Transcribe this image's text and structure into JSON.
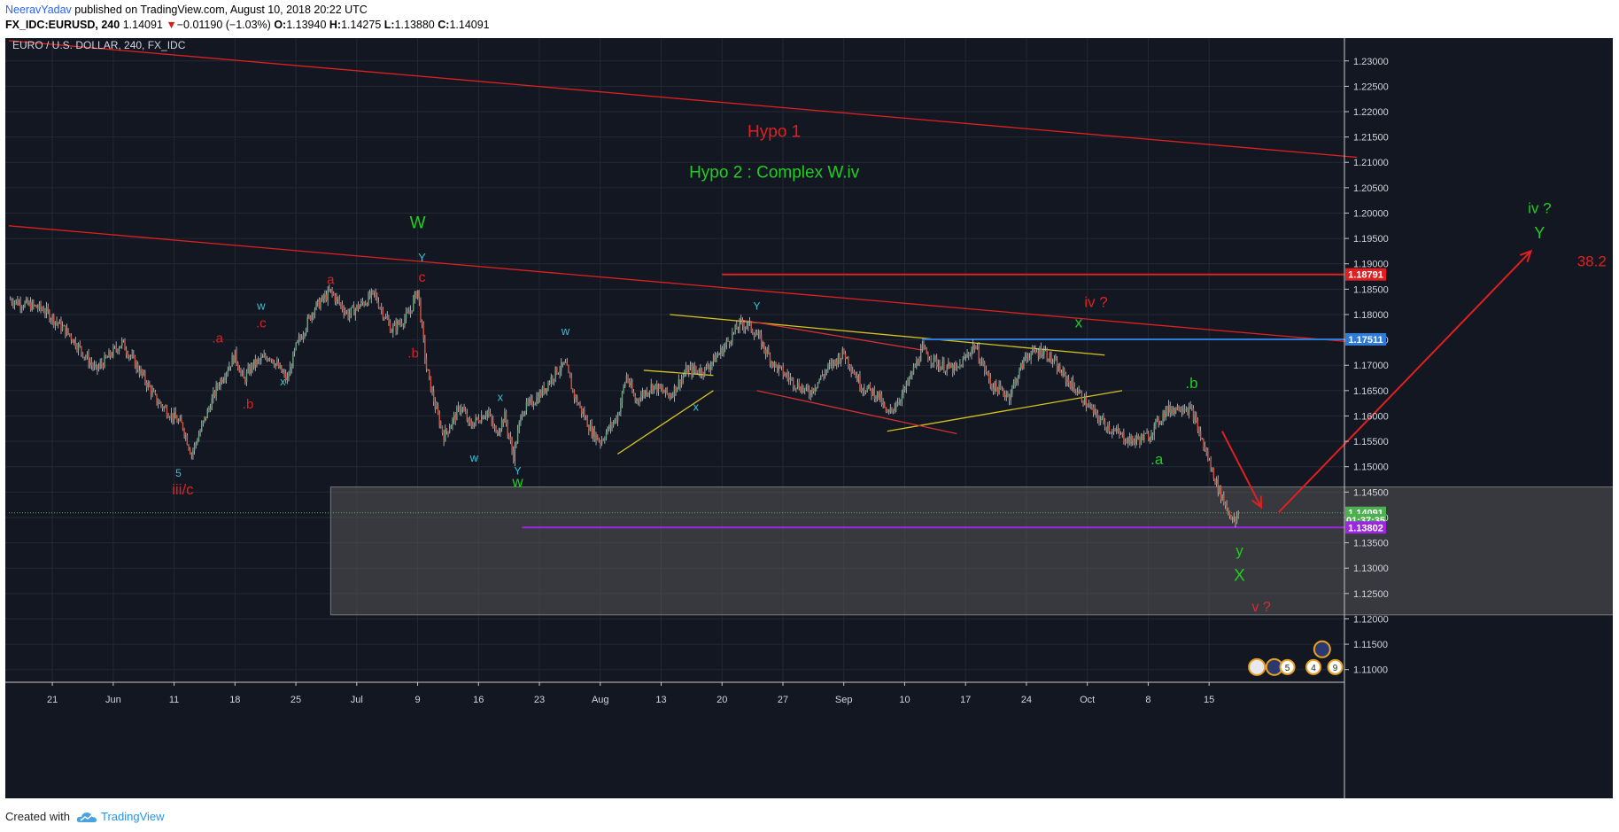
{
  "header": {
    "author": "NeeravYadav",
    "published_text": "published on TradingView.com, August 10, 2018 20:22 UTC",
    "symbol": "FX_IDC:EURUSD, 240",
    "last_price": "1.14091",
    "down_arrow": "▼",
    "change": "−0.01190 (−1.03%)",
    "o_label": "O:",
    "o_value": "1.13940",
    "h_label": "H:",
    "h_value": "1.14275",
    "l_label": "L:",
    "l_value": "1.13880",
    "c_label": "C:",
    "c_value": "1.14091"
  },
  "footer": {
    "created_with": "Created with",
    "brand": "TradingView"
  },
  "chart_data": {
    "type": "candlestick",
    "title": "EURO / U.S. DOLLAR, 240, FX_IDC",
    "background": "#131722",
    "grid": true,
    "x_axis_labels": [
      "21",
      "Jun",
      "11",
      "18",
      "25",
      "Jul",
      "9",
      "16",
      "23",
      "Aug",
      "13",
      "20",
      "27",
      "Sep",
      "10",
      "17",
      "24",
      "Oct",
      "8",
      "15"
    ],
    "y_axis": {
      "ylim": [
        1.1075,
        1.2345
      ],
      "ticks": [
        "1.11000",
        "1.11500",
        "1.12000",
        "1.12500",
        "1.13000",
        "1.13500",
        "1.14000",
        "1.14500",
        "1.15000",
        "1.15500",
        "1.16000",
        "1.16500",
        "1.17000",
        "1.17500",
        "1.18000",
        "1.18500",
        "1.19000",
        "1.19500",
        "1.20000",
        "1.20500",
        "1.21000",
        "1.21500",
        "1.22000",
        "1.22500",
        "1.23000"
      ]
    },
    "price_badges": [
      {
        "text": "1.18791",
        "value": 1.18791,
        "color": "#e02020"
      },
      {
        "text": "1.17511",
        "value": 1.17511,
        "color": "#2f7bd8"
      },
      {
        "text": "1.14091",
        "value": 1.14091,
        "color": "#4caf50"
      },
      {
        "text": "01:37:35",
        "value": 1.13947,
        "color": "#4caf50"
      },
      {
        "text": "1.13802",
        "value": 1.13802,
        "color": "#9c27e0"
      }
    ],
    "price_series": [
      {
        "x": 0,
        "y": 1.183
      },
      {
        "x": 4,
        "y": 1.181
      },
      {
        "x": 7,
        "y": 1.176
      },
      {
        "x": 10,
        "y": 1.169
      },
      {
        "x": 13,
        "y": 1.1745
      },
      {
        "x": 15,
        "y": 1.169
      },
      {
        "x": 17,
        "y": 1.163
      },
      {
        "x": 20,
        "y": 1.158
      },
      {
        "x": 21,
        "y": 1.1525
      },
      {
        "x": 22,
        "y": 1.157
      },
      {
        "x": 24,
        "y": 1.166
      },
      {
        "x": 26,
        "y": 1.172
      },
      {
        "x": 27,
        "y": 1.167
      },
      {
        "x": 28,
        "y": 1.17
      },
      {
        "x": 30,
        "y": 1.172
      },
      {
        "x": 32,
        "y": 1.167
      },
      {
        "x": 33,
        "y": 1.1735
      },
      {
        "x": 35,
        "y": 1.181
      },
      {
        "x": 37,
        "y": 1.1845
      },
      {
        "x": 39,
        "y": 1.18
      },
      {
        "x": 42,
        "y": 1.184
      },
      {
        "x": 44,
        "y": 1.177
      },
      {
        "x": 46,
        "y": 1.18
      },
      {
        "x": 47,
        "y": 1.185
      },
      {
        "x": 48,
        "y": 1.1695
      },
      {
        "x": 49,
        "y": 1.162
      },
      {
        "x": 50,
        "y": 1.156
      },
      {
        "x": 52,
        "y": 1.162
      },
      {
        "x": 53,
        "y": 1.158
      },
      {
        "x": 55,
        "y": 1.161
      },
      {
        "x": 56,
        "y": 1.1565
      },
      {
        "x": 57,
        "y": 1.16
      },
      {
        "x": 58,
        "y": 1.152
      },
      {
        "x": 59,
        "y": 1.161
      },
      {
        "x": 61,
        "y": 1.164
      },
      {
        "x": 63,
        "y": 1.169
      },
      {
        "x": 64,
        "y": 1.17
      },
      {
        "x": 65,
        "y": 1.164
      },
      {
        "x": 67,
        "y": 1.157
      },
      {
        "x": 68,
        "y": 1.155
      },
      {
        "x": 70,
        "y": 1.16
      },
      {
        "x": 71,
        "y": 1.168
      },
      {
        "x": 72,
        "y": 1.163
      },
      {
        "x": 74,
        "y": 1.166
      },
      {
        "x": 76,
        "y": 1.164
      },
      {
        "x": 78,
        "y": 1.169
      },
      {
        "x": 80,
        "y": 1.169
      },
      {
        "x": 82,
        "y": 1.173
      },
      {
        "x": 84,
        "y": 1.178
      },
      {
        "x": 85,
        "y": 1.178
      },
      {
        "x": 86,
        "y": 1.176
      },
      {
        "x": 88,
        "y": 1.17
      },
      {
        "x": 90,
        "y": 1.167
      },
      {
        "x": 92,
        "y": 1.1645
      },
      {
        "x": 94,
        "y": 1.169
      },
      {
        "x": 96,
        "y": 1.1725
      },
      {
        "x": 98,
        "y": 1.166
      },
      {
        "x": 100,
        "y": 1.164
      },
      {
        "x": 101,
        "y": 1.16
      },
      {
        "x": 103,
        "y": 1.165
      },
      {
        "x": 105,
        "y": 1.173
      },
      {
        "x": 107,
        "y": 1.17
      },
      {
        "x": 109,
        "y": 1.169
      },
      {
        "x": 111,
        "y": 1.174
      },
      {
        "x": 113,
        "y": 1.166
      },
      {
        "x": 115,
        "y": 1.164
      },
      {
        "x": 117,
        "y": 1.172
      },
      {
        "x": 119,
        "y": 1.173
      },
      {
        "x": 121,
        "y": 1.1685
      },
      {
        "x": 123,
        "y": 1.1645
      },
      {
        "x": 125,
        "y": 1.16
      },
      {
        "x": 127,
        "y": 1.157
      },
      {
        "x": 129,
        "y": 1.155
      },
      {
        "x": 131,
        "y": 1.156
      },
      {
        "x": 133,
        "y": 1.161
      },
      {
        "x": 135,
        "y": 1.162
      },
      {
        "x": 136,
        "y": 1.161
      },
      {
        "x": 137,
        "y": 1.156
      },
      {
        "x": 138,
        "y": 1.151
      },
      {
        "x": 139,
        "y": 1.146
      },
      {
        "x": 140,
        "y": 1.142
      },
      {
        "x": 141,
        "y": 1.1388
      },
      {
        "x": 141.5,
        "y": 1.1409
      }
    ],
    "horizontal_lines": [
      {
        "value": 1.18791,
        "from_x": 82,
        "color": "#e02020",
        "label": "38.2"
      },
      {
        "value": 1.17511,
        "from_x": 105,
        "color": "#2f7bd8"
      },
      {
        "value": 1.13802,
        "from_x": 59,
        "color": "#9c27e0"
      },
      {
        "value": 1.14091,
        "from_x": 0,
        "color": "#4caf50",
        "dotted": true
      }
    ],
    "zone": {
      "x0": 37,
      "x1": 245,
      "y0": 1.146,
      "y1": 1.1208,
      "color": "#555555"
    },
    "trendlines": [
      {
        "x0": 0,
        "y0": 1.234,
        "x1": 155,
        "y1": 1.211,
        "color": "#e02020"
      },
      {
        "x0": 0,
        "y0": 1.1975,
        "x1": 155,
        "y1": 1.1745,
        "color": "#e02020"
      },
      {
        "x0": 76,
        "y0": 1.18,
        "x1": 126,
        "y1": 1.172,
        "color": "#d4c320"
      },
      {
        "x0": 101,
        "y0": 1.157,
        "x1": 128,
        "y1": 1.165,
        "color": "#d4c320"
      },
      {
        "x0": 70,
        "y0": 1.1525,
        "x1": 81,
        "y1": 1.165,
        "color": "#d4c320"
      },
      {
        "x0": 73,
        "y0": 1.169,
        "x1": 81,
        "y1": 1.168,
        "color": "#d4c320"
      },
      {
        "x0": 84,
        "y0": 1.179,
        "x1": 105,
        "y1": 1.173,
        "color": "#d43030"
      },
      {
        "x0": 86,
        "y0": 1.165,
        "x1": 109,
        "y1": 1.1565,
        "color": "#d43030"
      }
    ],
    "arrows": [
      {
        "x0": 139.5,
        "y0": 1.157,
        "x1": 144,
        "y1": 1.142,
        "color": "#e02020"
      },
      {
        "x0": 146,
        "y0": 1.141,
        "x1": 175,
        "y1": 1.1925,
        "color": "#e02020"
      }
    ],
    "annotations": [
      {
        "text": "Hypo 1",
        "x": 88,
        "y": 1.215,
        "color": "#e02020",
        "size": 19
      },
      {
        "text": "Hypo 2 : Complex W.iv",
        "x": 88,
        "y": 1.207,
        "color": "#22cc22",
        "size": 19
      },
      {
        "text": "W",
        "x": 47,
        "y": 1.197,
        "color": "#22cc22",
        "size": 19
      },
      {
        "text": "Y",
        "x": 47.5,
        "y": 1.1905,
        "color": "#35c2d8",
        "size": 13
      },
      {
        "text": "c",
        "x": 47.5,
        "y": 1.1865,
        "color": "#e02020",
        "size": 16
      },
      {
        "text": "a",
        "x": 37,
        "y": 1.186,
        "color": "#e02020",
        "size": 15
      },
      {
        "text": "w",
        "x": 29,
        "y": 1.181,
        "color": "#35c2d8",
        "size": 13
      },
      {
        "text": ".c",
        "x": 29,
        "y": 1.1775,
        "color": "#e02020",
        "size": 15
      },
      {
        "text": ".a",
        "x": 24,
        "y": 1.1745,
        "color": "#e02020",
        "size": 15
      },
      {
        "text": ".b",
        "x": 46.5,
        "y": 1.1715,
        "color": "#e02020",
        "size": 15
      },
      {
        "text": "x",
        "x": 31.5,
        "y": 1.166,
        "color": "#35c2d8",
        "size": 13
      },
      {
        "text": ".b",
        "x": 27.5,
        "y": 1.1615,
        "color": "#e02020",
        "size": 15
      },
      {
        "text": "5",
        "x": 19.5,
        "y": 1.148,
        "color": "#35c2d8",
        "size": 12
      },
      {
        "text": "iii/c",
        "x": 20,
        "y": 1.1445,
        "color": "#e02020",
        "size": 17
      },
      {
        "text": "w",
        "x": 64,
        "y": 1.176,
        "color": "#35c2d8",
        "size": 13
      },
      {
        "text": "x",
        "x": 56.5,
        "y": 1.163,
        "color": "#35c2d8",
        "size": 13
      },
      {
        "text": "w",
        "x": 53.5,
        "y": 1.151,
        "color": "#35c2d8",
        "size": 13
      },
      {
        "text": "Y",
        "x": 58.5,
        "y": 1.1485,
        "color": "#35c2d8",
        "size": 12
      },
      {
        "text": "w",
        "x": 58.5,
        "y": 1.146,
        "color": "#22cc22",
        "size": 17
      },
      {
        "text": "Y",
        "x": 86,
        "y": 1.181,
        "color": "#35c2d8",
        "size": 12
      },
      {
        "text": "x",
        "x": 79,
        "y": 1.161,
        "color": "#35c2d8",
        "size": 13
      },
      {
        "text": "iv ?",
        "x": 125,
        "y": 1.1815,
        "color": "#e02020",
        "size": 17
      },
      {
        "text": "x",
        "x": 123,
        "y": 1.1775,
        "color": "#22cc22",
        "size": 17
      },
      {
        "text": ".b",
        "x": 136,
        "y": 1.1655,
        "color": "#22cc22",
        "size": 17
      },
      {
        "text": ".a",
        "x": 132,
        "y": 1.1505,
        "color": "#22cc22",
        "size": 17
      },
      {
        "text": "y",
        "x": 141.5,
        "y": 1.1325,
        "color": "#22cc22",
        "size": 17
      },
      {
        "text": "X",
        "x": 141.5,
        "y": 1.1275,
        "color": "#22cc22",
        "size": 19
      },
      {
        "text": "v ?",
        "x": 144,
        "y": 1.1215,
        "color": "#d43030",
        "size": 16
      },
      {
        "text": "iv ?",
        "x": 176,
        "y": 1.2,
        "color": "#22cc22",
        "size": 17
      },
      {
        "text": "Y",
        "x": 176,
        "y": 1.195,
        "color": "#22cc22",
        "size": 18
      },
      {
        "text": "38.2",
        "x": 182,
        "y": 1.1895,
        "color": "#e02020",
        "size": 17
      }
    ],
    "event_markers": [
      {
        "text": "5",
        "x": 147,
        "y": 1.1105
      },
      {
        "text": "4",
        "x": 150,
        "y": 1.1105
      },
      {
        "text": "9",
        "x": 152.5,
        "y": 1.1105
      }
    ]
  }
}
